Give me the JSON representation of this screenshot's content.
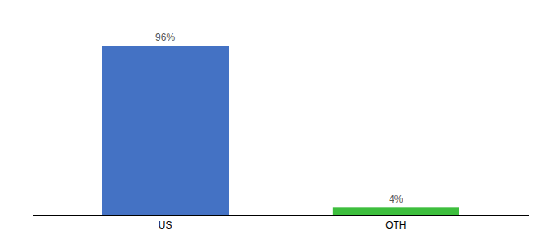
{
  "chart_data": {
    "type": "bar",
    "categories": [
      "US",
      "OTH"
    ],
    "values": [
      96,
      4
    ],
    "value_labels": [
      "96%",
      "4%"
    ],
    "colors": [
      "#4472c4",
      "#3dbe3d"
    ],
    "ylim": [
      0,
      108
    ],
    "data_labels": true,
    "tick_labels": "x"
  }
}
